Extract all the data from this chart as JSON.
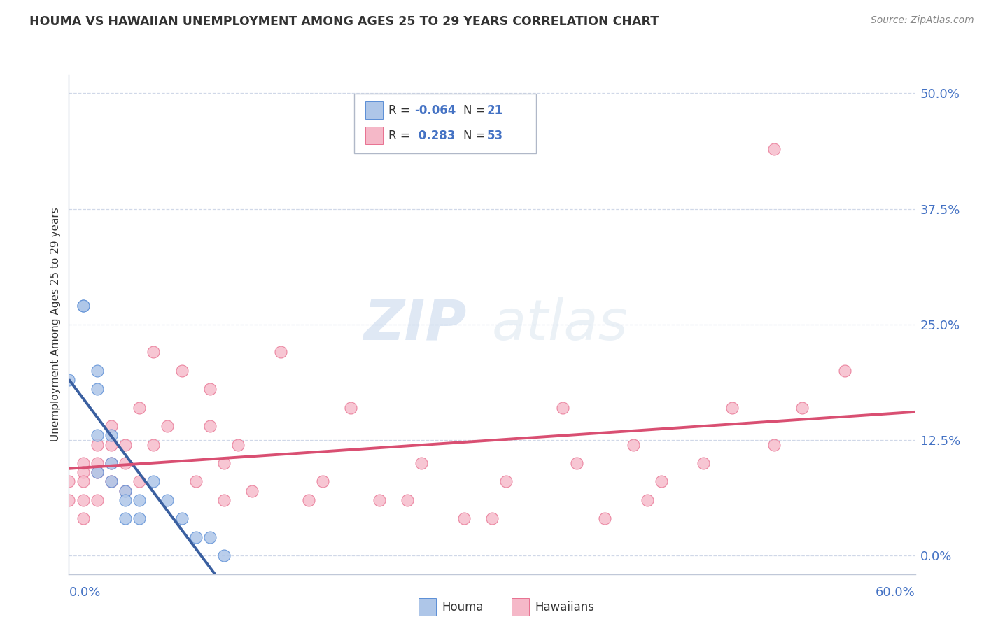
{
  "title": "HOUMA VS HAWAIIAN UNEMPLOYMENT AMONG AGES 25 TO 29 YEARS CORRELATION CHART",
  "source": "Source: ZipAtlas.com",
  "ylabel": "Unemployment Among Ages 25 to 29 years",
  "ytick_values": [
    0.0,
    0.125,
    0.25,
    0.375,
    0.5
  ],
  "ytick_labels_right": [
    "0.0%",
    "12.5%",
    "25.0%",
    "37.5%",
    "50.0%"
  ],
  "xmin": 0.0,
  "xmax": 0.6,
  "ymin": -0.02,
  "ymax": 0.52,
  "houma_R": "-0.064",
  "houma_N": "21",
  "hawaiians_R": "0.283",
  "hawaiians_N": "53",
  "houma_color": "#aec6e8",
  "houma_edge_color": "#5b8ed6",
  "houma_line_color": "#3a5fa0",
  "hawaiians_color": "#f5b8c8",
  "hawaiians_edge_color": "#e87090",
  "hawaiians_line_color": "#d94f72",
  "watermark_color": "#c8d8f0",
  "houma_x": [
    0.0,
    0.01,
    0.01,
    0.02,
    0.02,
    0.02,
    0.02,
    0.03,
    0.03,
    0.03,
    0.04,
    0.04,
    0.04,
    0.05,
    0.05,
    0.06,
    0.07,
    0.08,
    0.09,
    0.1,
    0.11
  ],
  "houma_y": [
    0.19,
    0.27,
    0.27,
    0.2,
    0.18,
    0.13,
    0.09,
    0.13,
    0.1,
    0.08,
    0.07,
    0.06,
    0.04,
    0.06,
    0.04,
    0.08,
    0.06,
    0.04,
    0.02,
    0.02,
    0.0
  ],
  "hawaiians_x": [
    0.0,
    0.0,
    0.01,
    0.01,
    0.01,
    0.01,
    0.01,
    0.02,
    0.02,
    0.02,
    0.02,
    0.03,
    0.03,
    0.03,
    0.03,
    0.04,
    0.04,
    0.04,
    0.05,
    0.05,
    0.06,
    0.06,
    0.07,
    0.08,
    0.09,
    0.1,
    0.1,
    0.11,
    0.11,
    0.12,
    0.13,
    0.15,
    0.17,
    0.18,
    0.2,
    0.22,
    0.24,
    0.25,
    0.28,
    0.3,
    0.31,
    0.35,
    0.36,
    0.38,
    0.4,
    0.41,
    0.42,
    0.45,
    0.47,
    0.5,
    0.5,
    0.52,
    0.55
  ],
  "hawaiians_y": [
    0.08,
    0.06,
    0.1,
    0.09,
    0.08,
    0.06,
    0.04,
    0.12,
    0.1,
    0.09,
    0.06,
    0.14,
    0.12,
    0.1,
    0.08,
    0.12,
    0.1,
    0.07,
    0.16,
    0.08,
    0.22,
    0.12,
    0.14,
    0.2,
    0.08,
    0.18,
    0.14,
    0.1,
    0.06,
    0.12,
    0.07,
    0.22,
    0.06,
    0.08,
    0.16,
    0.06,
    0.06,
    0.1,
    0.04,
    0.04,
    0.08,
    0.16,
    0.1,
    0.04,
    0.12,
    0.06,
    0.08,
    0.1,
    0.16,
    0.44,
    0.12,
    0.16,
    0.2
  ],
  "houma_line_x_end": 0.16,
  "bg_color": "#ffffff",
  "grid_color": "#d0d8e8",
  "spine_color": "#c0c8d8"
}
